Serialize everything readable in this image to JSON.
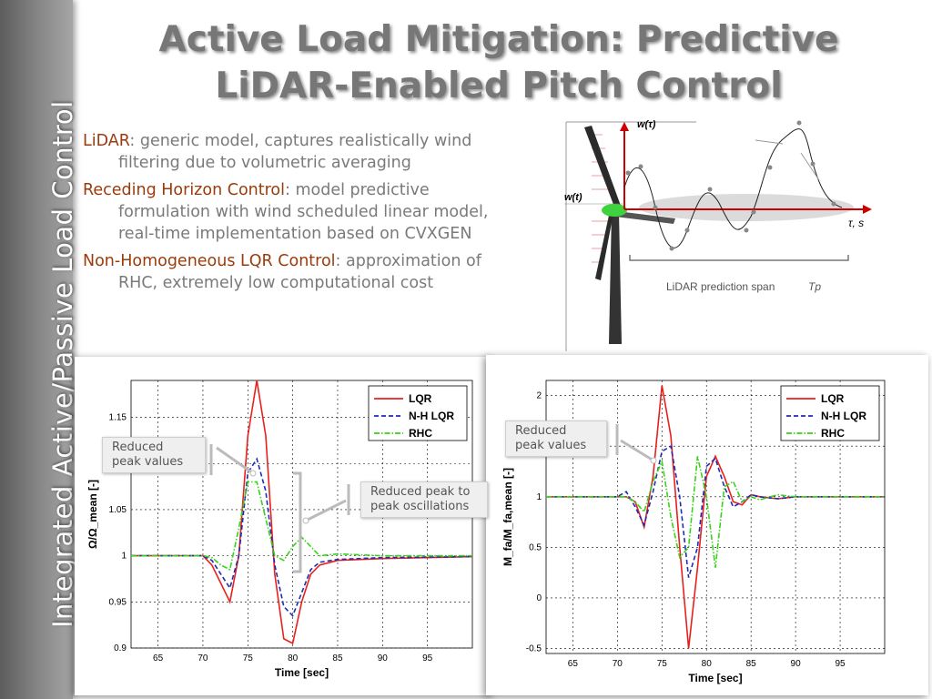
{
  "sidebar": {
    "text": "Integrated Active/Passive Load Control"
  },
  "title": {
    "line1": "Active Load Mitigation: Predictive",
    "line2": "LiDAR-Enabled Pitch Control"
  },
  "bullets": [
    {
      "key": "LiDAR",
      "text": ": generic model, captures realistically wind filtering due to volumetric averaging"
    },
    {
      "key": "Receding Horizon Control",
      "text": ": model predictive formulation with wind scheduled linear model, real-time implementation based on CVXGEN"
    },
    {
      "key": "Non-Homogeneous LQR Control",
      "text": ":  approximation of RHC, extremely low computational cost"
    }
  ],
  "diagram": {
    "w_tau": "w(τ)",
    "w_t": "w(t)",
    "tau_s": "τ, s",
    "span_label": "LiDAR prediction span",
    "span_symbol": "Tp"
  },
  "colors": {
    "LQR": "#e8201d",
    "N-H LQR": "#1c2db8",
    "RHC": "#36d416",
    "accent": "#9a3b0c",
    "title": "#777777"
  },
  "callouts": {
    "left_peak": "Reduced peak values",
    "left_p2p": "Reduced peak to peak oscillations",
    "right_peak": "Reduced peak values"
  },
  "chart_data": [
    {
      "type": "line",
      "xlabel": "Time [sec]",
      "ylabel": "Ω/Ω_mean [-]",
      "xlim": [
        62,
        100
      ],
      "ylim": [
        0.9,
        1.19
      ],
      "x_ticks": [
        65,
        70,
        75,
        80,
        85,
        90,
        95
      ],
      "y_ticks": [
        0.9,
        0.95,
        1,
        1.05,
        1.1,
        1.15
      ],
      "grid": true,
      "legend": "top-right",
      "x": [
        62,
        70,
        71,
        72,
        73,
        74,
        75,
        76,
        77,
        78,
        79,
        80,
        81,
        82,
        83,
        85,
        90,
        100
      ],
      "series": [
        {
          "name": "LQR",
          "values": [
            1.0,
            1.0,
            0.99,
            0.97,
            0.95,
            1.0,
            1.13,
            1.19,
            1.13,
            0.98,
            0.91,
            0.905,
            0.95,
            0.98,
            0.99,
            0.995,
            0.997,
            0.999
          ]
        },
        {
          "name": "N-H LQR",
          "values": [
            1.0,
            1.0,
            0.995,
            0.98,
            0.965,
            1.0,
            1.09,
            1.105,
            1.07,
            0.99,
            0.945,
            0.935,
            0.96,
            0.985,
            0.993,
            0.996,
            0.998,
            0.999
          ]
        },
        {
          "name": "RHC",
          "values": [
            1.0,
            1.0,
            0.998,
            0.99,
            0.985,
            1.03,
            1.08,
            1.08,
            1.04,
            1.0,
            0.995,
            1.01,
            1.02,
            1.01,
            1.0,
            1.002,
            1.0,
            1.0
          ]
        }
      ]
    },
    {
      "type": "line",
      "xlabel": "Time [sec]",
      "ylabel": "M_fa/M_fa,mean [-]",
      "xlim": [
        62,
        100
      ],
      "ylim": [
        -0.55,
        2.15
      ],
      "x_ticks": [
        65,
        70,
        75,
        80,
        85,
        90,
        95
      ],
      "y_ticks": [
        -0.5,
        0,
        0.5,
        1,
        1.5,
        2
      ],
      "grid": true,
      "legend": "top-right",
      "x": [
        62,
        70,
        71,
        72,
        73,
        74,
        75,
        76,
        77,
        78,
        79,
        80,
        81,
        82,
        83,
        84,
        85,
        86,
        88,
        90,
        100
      ],
      "series": [
        {
          "name": "LQR",
          "values": [
            1.0,
            1.0,
            1.0,
            0.95,
            0.7,
            1.2,
            2.1,
            1.6,
            0.5,
            -0.5,
            0.3,
            1.2,
            1.4,
            1.2,
            0.95,
            0.92,
            1.02,
            1.0,
            0.98,
            1.0,
            1.0
          ]
        },
        {
          "name": "N-H LQR",
          "values": [
            1.0,
            1.0,
            1.05,
            0.9,
            0.72,
            1.05,
            1.45,
            1.5,
            1.0,
            0.2,
            0.5,
            1.3,
            1.38,
            1.1,
            0.9,
            0.95,
            1.02,
            1.0,
            0.98,
            1.0,
            1.0
          ]
        },
        {
          "name": "RHC",
          "values": [
            1.0,
            1.0,
            1.0,
            0.95,
            0.85,
            1.15,
            1.35,
            0.8,
            0.4,
            0.5,
            1.4,
            1.0,
            0.3,
            1.1,
            1.15,
            0.95,
            1.0,
            0.97,
            1.02,
            1.0,
            1.0
          ]
        }
      ]
    }
  ]
}
